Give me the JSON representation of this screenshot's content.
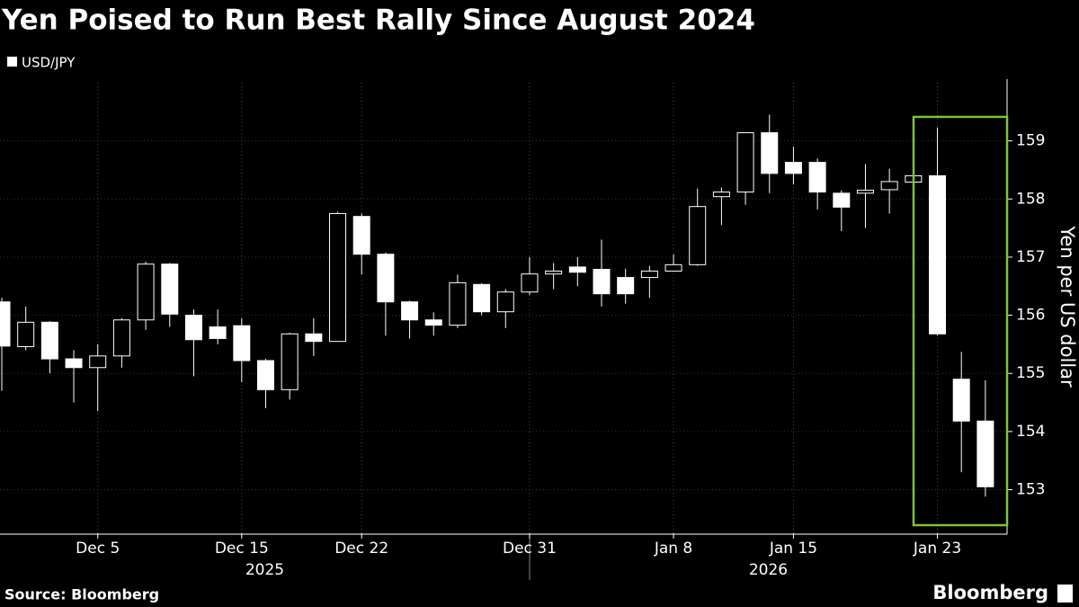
{
  "chart_data": {
    "type": "candlestick",
    "title": "Yen Poised to Run Best Rally Since August 2024",
    "legend": "USD/JPY",
    "y_label": "Yen per US dollar",
    "source": "Source: Bloomberg",
    "brand": "Bloomberg",
    "categories": [
      null,
      null,
      null,
      null,
      "Dec 5",
      null,
      null,
      null,
      null,
      null,
      "Dec 15",
      null,
      null,
      null,
      null,
      "Dec 22",
      null,
      null,
      null,
      null,
      null,
      null,
      "Dec 31",
      null,
      null,
      null,
      null,
      null,
      "Jan 8",
      null,
      null,
      null,
      null,
      "Jan 15",
      null,
      null,
      null,
      null,
      null,
      "Jan 23",
      null,
      null
    ],
    "years": [
      "2025",
      "2026"
    ],
    "open": [
      156.23,
      155.46,
      155.88,
      155.25,
      155.1,
      155.3,
      155.92,
      156.88,
      156.0,
      155.8,
      155.82,
      155.22,
      154.72,
      155.68,
      155.55,
      157.7,
      157.05,
      156.23,
      155.92,
      155.83,
      156.53,
      156.06,
      156.4,
      156.71,
      156.83,
      156.79,
      156.65,
      156.65,
      156.76,
      156.87,
      158.04,
      158.12,
      159.14,
      158.63,
      158.63,
      158.1,
      158.1,
      158.16,
      158.29,
      158.4,
      154.9,
      154.18
    ],
    "high": [
      156.3,
      156.15,
      155.9,
      155.4,
      155.5,
      155.95,
      156.92,
      156.9,
      156.1,
      156.1,
      155.95,
      155.25,
      155.7,
      155.95,
      157.78,
      157.75,
      157.08,
      156.25,
      156.05,
      156.7,
      156.55,
      156.45,
      157.0,
      156.9,
      157.0,
      157.3,
      156.8,
      156.85,
      157.05,
      158.18,
      158.2,
      159.15,
      159.45,
      158.9,
      158.7,
      158.15,
      158.6,
      158.52,
      158.5,
      159.23,
      155.37,
      154.88
    ],
    "low": [
      154.7,
      155.4,
      155.0,
      154.5,
      154.35,
      155.1,
      155.75,
      155.8,
      154.95,
      155.5,
      154.85,
      154.4,
      154.55,
      155.3,
      155.55,
      156.7,
      155.65,
      155.6,
      155.65,
      155.78,
      156.0,
      155.78,
      156.35,
      156.45,
      156.5,
      156.15,
      156.2,
      156.3,
      156.75,
      156.85,
      157.55,
      157.9,
      158.1,
      158.25,
      157.82,
      157.45,
      157.5,
      157.75,
      158.2,
      155.65,
      153.3,
      152.88
    ],
    "close": [
      155.47,
      155.88,
      155.25,
      155.1,
      155.3,
      155.92,
      156.88,
      156.02,
      155.58,
      155.6,
      155.22,
      154.72,
      155.68,
      155.55,
      157.75,
      157.05,
      156.23,
      155.92,
      155.83,
      156.56,
      156.06,
      156.4,
      156.71,
      156.76,
      156.74,
      156.37,
      156.37,
      156.76,
      156.87,
      157.87,
      158.12,
      159.14,
      158.44,
      158.44,
      158.12,
      157.86,
      158.15,
      158.3,
      158.4,
      155.68,
      154.18,
      153.05
    ],
    "color": "#ffffff",
    "highlight_color": "#7cc242",
    "ylim": [
      152.25,
      160
    ],
    "yticks": [
      153,
      154,
      155,
      156,
      157,
      158,
      159
    ],
    "grid": true
  }
}
